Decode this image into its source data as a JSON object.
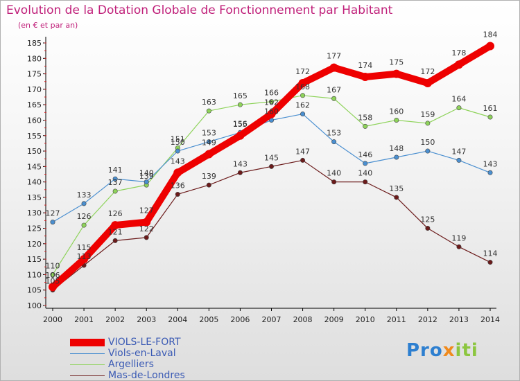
{
  "title": "Evolution de la Dotation Globale de Fonctionnement par Habitant",
  "subtitle": "(en € et par an)",
  "logo": {
    "part1": "Pro",
    "part2": "x",
    "part3": "iti"
  },
  "chart_data": {
    "type": "line",
    "title": "Evolution de la Dotation Globale de Fonctionnement par Habitant",
    "ylabel": "(en € et par an)",
    "xlabel": "",
    "ylim": [
      100,
      185
    ],
    "yticks": [
      100,
      105,
      110,
      115,
      120,
      125,
      130,
      135,
      140,
      145,
      150,
      155,
      160,
      165,
      170,
      175,
      180,
      185
    ],
    "x": [
      "2000",
      "2001",
      "2002",
      "2003",
      "2004",
      "2005",
      "2006",
      "2007",
      "2008",
      "2009",
      "2010",
      "2011",
      "2012",
      "2013",
      "2014"
    ],
    "grid": false,
    "legend_position": "bottom-left",
    "series": [
      {
        "name": "Mas-de-Londres",
        "color": "#6b1a1a",
        "values": [
          105,
          113,
          121,
          122,
          136,
          139,
          143,
          145,
          147,
          140,
          140,
          135,
          125,
          119,
          114
        ]
      },
      {
        "name": "Argelliers",
        "color": "#8ed35a",
        "values": [
          110,
          126,
          137,
          139,
          151,
          163,
          165,
          166,
          168,
          167,
          158,
          160,
          159,
          164,
          161
        ]
      },
      {
        "name": "Viols-en-Laval",
        "color": "#4a8fd0",
        "values": [
          127,
          133,
          141,
          140,
          150,
          153,
          156,
          160,
          162,
          153,
          146,
          148,
          150,
          147,
          143
        ]
      },
      {
        "name": "VIOLS-LE-FORT",
        "color": "#ee0000",
        "values": [
          106,
          115,
          126,
          127,
          143,
          149,
          155,
          162,
          172,
          177,
          174,
          175,
          172,
          178,
          184
        ]
      }
    ]
  }
}
